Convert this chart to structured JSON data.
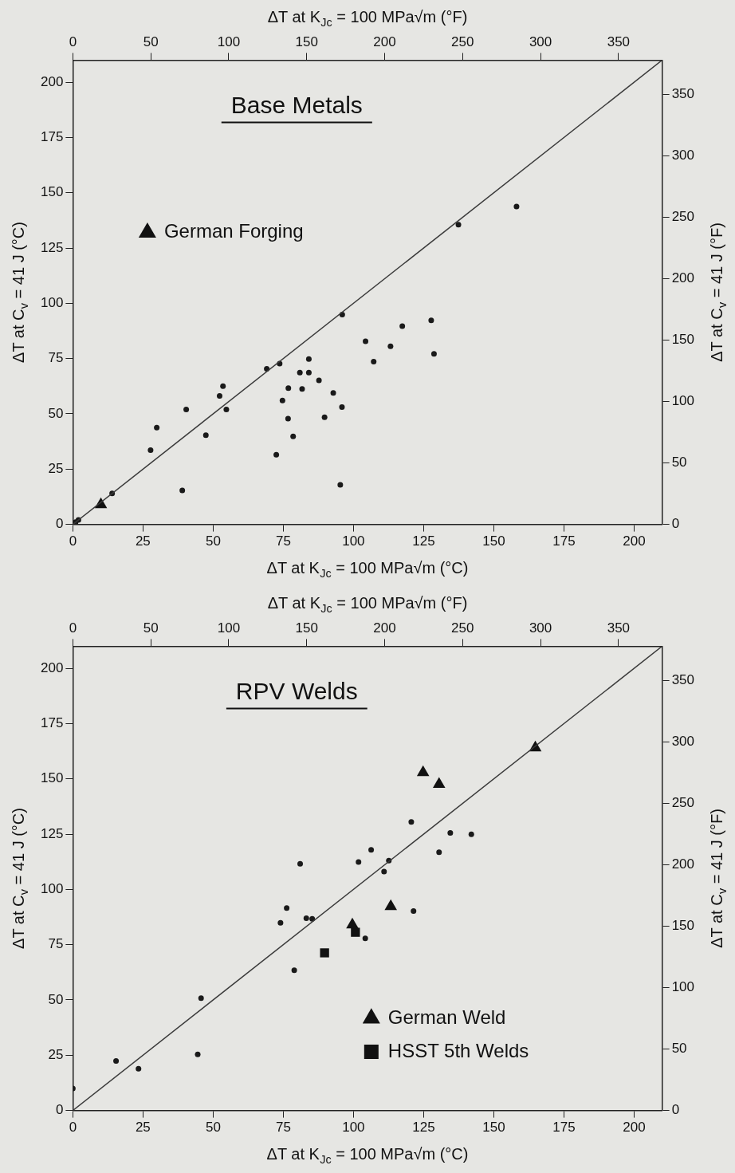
{
  "chart_data": [
    {
      "type": "scatter",
      "title": "Base Metals",
      "xlabel": "ΔT at K$_{Jc}$ = 100 MPa√m (°C)",
      "x2label": "ΔT at K$_{Jc}$ = 100 MPa√m (°F)",
      "ylabel": "ΔT at C$_{v}$ = 41 J (°C)",
      "y2label": "ΔT at C$_{v}$ = 41 J (°F)",
      "xlim": [
        0,
        210
      ],
      "xticks": [
        0,
        25,
        50,
        75,
        100,
        125,
        150,
        175,
        200
      ],
      "ylim": [
        0,
        210
      ],
      "yticks": [
        0,
        25,
        50,
        75,
        100,
        125,
        150,
        175,
        200
      ],
      "x2lim": [
        0,
        378
      ],
      "x2ticks": [
        0,
        50,
        100,
        150,
        200,
        250,
        300,
        350
      ],
      "y2lim": [
        0,
        378
      ],
      "y2ticks": [
        0,
        50,
        100,
        150,
        200,
        250,
        300,
        350
      ],
      "grid": false,
      "legend": "top left",
      "series": [
        {
          "type": "line",
          "color": "#3a3a3a",
          "marker": "none",
          "line_style": "solid",
          "x": [
            0,
            210
          ],
          "values": [
            0,
            210
          ]
        },
        {
          "color": "#1a1a1a",
          "marker": "circle",
          "x": [
            1,
            2,
            14,
            27.7,
            29.9,
            39,
            40.4,
            47.4,
            52.3,
            53.5,
            54.7,
            69.1,
            73.7,
            72.5,
            74.7,
            76.8,
            76.7,
            78.5,
            80.9,
            81.7,
            84.1,
            84.1,
            87.7,
            89.7,
            92.8,
            95.9,
            95.3,
            96,
            104.3,
            107.2,
            113.2,
            117.4,
            127.7,
            128.7,
            137.4,
            158.1
          ],
          "values": [
            1,
            2,
            14,
            33.6,
            43.8,
            15.4,
            52,
            40.3,
            58.1,
            62.5,
            52,
            70.4,
            72.7,
            31.5,
            56,
            61.6,
            47.8,
            39.8,
            68.7,
            61.3,
            68.7,
            74.8,
            65.1,
            48.5,
            59.5,
            53.1,
            17.9,
            94.9,
            82.8,
            73.6,
            80.6,
            89.7,
            92.3,
            77.1,
            135.6,
            143.8
          ]
        },
        {
          "name": "German Forging",
          "color": "#111111",
          "marker": "triangle",
          "x": [
            10
          ],
          "values": [
            9
          ]
        }
      ]
    },
    {
      "type": "scatter",
      "title": "RPV Welds",
      "xlabel": "ΔT at K$_{Jc}$ = 100 MPa√m (°C)",
      "x2label": "ΔT at K$_{Jc}$ = 100 MPa√m (°F)",
      "ylabel": "ΔT at C$_{v}$ = 41 J (°C)",
      "y2label": "ΔT at C$_{v}$ = 41 J (°F)",
      "xlim": [
        0,
        210
      ],
      "xticks": [
        0,
        25,
        50,
        75,
        100,
        125,
        150,
        175,
        200
      ],
      "ylim": [
        0,
        210
      ],
      "yticks": [
        0,
        25,
        50,
        75,
        100,
        125,
        150,
        175,
        200
      ],
      "x2lim": [
        0,
        378
      ],
      "x2ticks": [
        0,
        50,
        100,
        150,
        200,
        250,
        300,
        350
      ],
      "y2lim": [
        0,
        378
      ],
      "y2ticks": [
        0,
        50,
        100,
        150,
        200,
        250,
        300,
        350
      ],
      "grid": false,
      "legend": "bottom right",
      "series": [
        {
          "type": "line",
          "color": "#3a3a3a",
          "marker": "none",
          "line_style": "solid",
          "x": [
            0,
            210
          ],
          "values": [
            0,
            210
          ]
        },
        {
          "color": "#1a1a1a",
          "marker": "circle",
          "x": [
            0,
            15.4,
            23.4,
            44.5,
            45.7,
            74,
            76.2,
            78.9,
            81,
            83.2,
            85.3,
            104.2,
            101.8,
            106.3,
            110.9,
            112.6,
            120.6,
            121.4,
            130.5,
            134.5,
            142
          ],
          "values": [
            10,
            22.4,
            18.9,
            25.4,
            50.8,
            84.9,
            91.6,
            63.4,
            111.6,
            87,
            86.7,
            77.9,
            112.4,
            117.9,
            108.1,
            113,
            130.5,
            90.2,
            116.8,
            125.6,
            124.9
          ]
        },
        {
          "name": "German Weld",
          "color": "#111111",
          "marker": "triangle",
          "x": [
            99.6,
            113.3,
            124.8,
            130.5,
            164.8
          ],
          "values": [
            84,
            92.3,
            152.9,
            147.6,
            164.1
          ]
        },
        {
          "name": "HSST 5th Welds",
          "color": "#111111",
          "marker": "square",
          "x": [
            89.7,
            100.7
          ],
          "values": [
            71.3,
            80.6
          ]
        }
      ]
    }
  ]
}
